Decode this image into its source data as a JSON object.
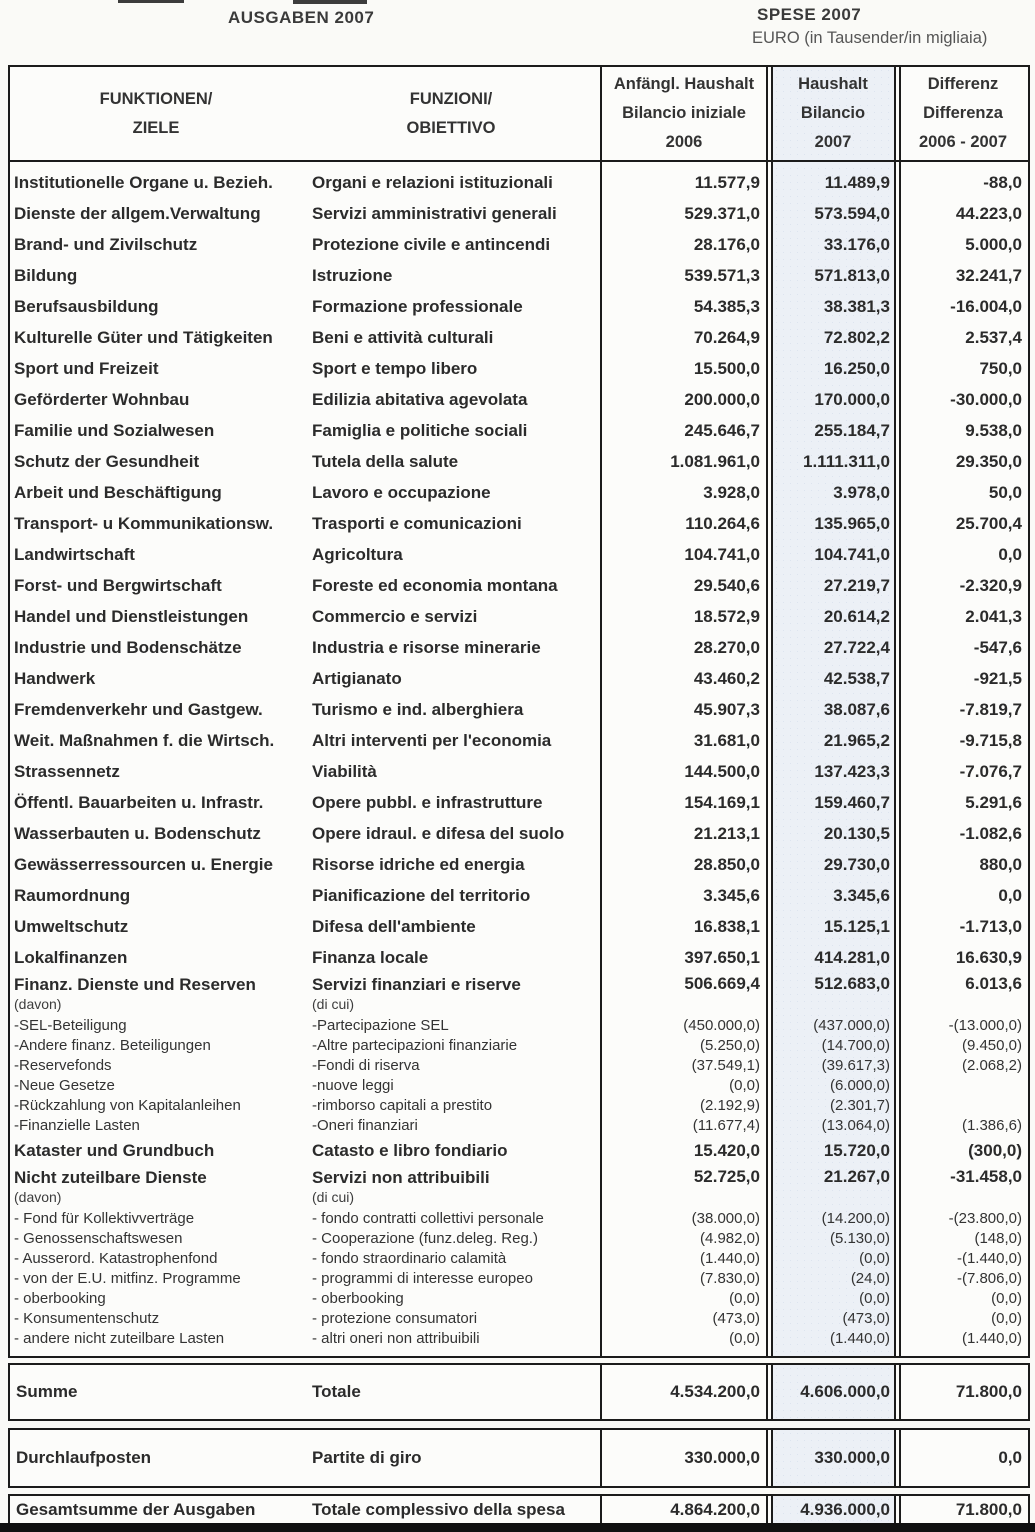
{
  "page": {
    "title_left": "AUSGABEN 2007",
    "title_right": "SPESE 2007",
    "subtitle_right": "EURO (in Tausender/in migliaia)"
  },
  "colors": {
    "border": "#1b1b1b",
    "column_2007_background": "#ecf0f6",
    "bottom_strip": "#101010"
  },
  "table": {
    "headers": {
      "col1": [
        "FUNKTIONEN/",
        "ZIELE"
      ],
      "col2": [
        "FUNZIONI/",
        "OBIETTIVO"
      ],
      "col3": [
        "Anfängl. Haushalt",
        "Bilancio iniziale",
        "2006"
      ],
      "col4": [
        "Haushalt",
        "Bilancio",
        "2007"
      ],
      "col5": [
        "Differenz",
        "Differenza",
        "2006 - 2007"
      ]
    },
    "rows": [
      {
        "type": "main",
        "de": "Institutionelle Organe u. Bezieh.",
        "it": "Organi e relazioni istituzionali",
        "v2006": "11.577,9",
        "v2007": "11.489,9",
        "diff": "-88,0"
      },
      {
        "type": "main",
        "de": "Dienste der allgem.Verwaltung",
        "it": "Servizi amministrativi generali",
        "v2006": "529.371,0",
        "v2007": "573.594,0",
        "diff": "44.223,0"
      },
      {
        "type": "main",
        "de": "Brand- und Zivilschutz",
        "it": "Protezione civile e antincendi",
        "v2006": "28.176,0",
        "v2007": "33.176,0",
        "diff": "5.000,0"
      },
      {
        "type": "main",
        "de": "Bildung",
        "it": "Istruzione",
        "v2006": "539.571,3",
        "v2007": "571.813,0",
        "diff": "32.241,7"
      },
      {
        "type": "main",
        "de": "Berufsausbildung",
        "it": "Formazione professionale",
        "v2006": "54.385,3",
        "v2007": "38.381,3",
        "diff": "-16.004,0"
      },
      {
        "type": "main",
        "de": "Kulturelle Güter und Tätigkeiten",
        "it": "Beni e attività culturali",
        "v2006": "70.264,9",
        "v2007": "72.802,2",
        "diff": "2.537,4"
      },
      {
        "type": "main",
        "de": "Sport und Freizeit",
        "it": "Sport e tempo libero",
        "v2006": "15.500,0",
        "v2007": "16.250,0",
        "diff": "750,0"
      },
      {
        "type": "main",
        "de": "Geförderter Wohnbau",
        "it": "Edilizia abitativa agevolata",
        "v2006": "200.000,0",
        "v2007": "170.000,0",
        "diff": "-30.000,0"
      },
      {
        "type": "main",
        "de": "Familie und Sozialwesen",
        "it": "Famiglia e politiche sociali",
        "v2006": "245.646,7",
        "v2007": "255.184,7",
        "diff": "9.538,0"
      },
      {
        "type": "main",
        "de": "Schutz der Gesundheit",
        "it": "Tutela della salute",
        "v2006": "1.081.961,0",
        "v2007": "1.111.311,0",
        "diff": "29.350,0"
      },
      {
        "type": "main",
        "de": "Arbeit und Beschäftigung",
        "it": "Lavoro e occupazione",
        "v2006": "3.928,0",
        "v2007": "3.978,0",
        "diff": "50,0"
      },
      {
        "type": "main",
        "de": "Transport- u Kommunikationsw.",
        "it": "Trasporti e comunicazioni",
        "v2006": "110.264,6",
        "v2007": "135.965,0",
        "diff": "25.700,4"
      },
      {
        "type": "main",
        "de": "Landwirtschaft",
        "it": "Agricoltura",
        "v2006": "104.741,0",
        "v2007": "104.741,0",
        "diff": "0,0"
      },
      {
        "type": "main",
        "de": "Forst- und Bergwirtschaft",
        "it": "Foreste ed economia montana",
        "v2006": "29.540,6",
        "v2007": "27.219,7",
        "diff": "-2.320,9"
      },
      {
        "type": "main",
        "de": "Handel und Dienstleistungen",
        "it": "Commercio e servizi",
        "v2006": "18.572,9",
        "v2007": "20.614,2",
        "diff": "2.041,3"
      },
      {
        "type": "main",
        "de": "Industrie und Bodenschätze",
        "it": "Industria e risorse minerarie",
        "v2006": "28.270,0",
        "v2007": "27.722,4",
        "diff": "-547,6"
      },
      {
        "type": "main",
        "de": "Handwerk",
        "it": "Artigianato",
        "v2006": "43.460,2",
        "v2007": "42.538,7",
        "diff": "-921,5"
      },
      {
        "type": "main",
        "de": "Fremdenverkehr und Gastgew.",
        "it": "Turismo e ind. alberghiera",
        "v2006": "45.907,3",
        "v2007": "38.087,6",
        "diff": "-7.819,7"
      },
      {
        "type": "main",
        "de": "Weit. Maßnahmen f. die Wirtsch.",
        "it": "Altri interventi per l'economia",
        "v2006": "31.681,0",
        "v2007": "21.965,2",
        "diff": "-9.715,8"
      },
      {
        "type": "main",
        "de": "Strassennetz",
        "it": "Viabilità",
        "v2006": "144.500,0",
        "v2007": "137.423,3",
        "diff": "-7.076,7"
      },
      {
        "type": "main",
        "de": "Öffentl. Bauarbeiten u. Infrastr.",
        "it": "Opere pubbl. e infrastrutture",
        "v2006": "154.169,1",
        "v2007": "159.460,7",
        "diff": "5.291,6"
      },
      {
        "type": "main",
        "de": "Wasserbauten u. Bodenschutz",
        "it": "Opere idraul. e difesa del suolo",
        "v2006": "21.213,1",
        "v2007": "20.130,5",
        "diff": "-1.082,6"
      },
      {
        "type": "main",
        "de": "Gewässerressourcen u. Energie",
        "it": "Risorse idriche ed energia",
        "v2006": "28.850,0",
        "v2007": "29.730,0",
        "diff": "880,0"
      },
      {
        "type": "main",
        "de": "Raumordnung",
        "it": "Pianificazione del territorio",
        "v2006": "3.345,6",
        "v2007": "3.345,6",
        "diff": "0,0"
      },
      {
        "type": "main",
        "de": "Umweltschutz",
        "it": "Difesa dell'ambiente",
        "v2006": "16.838,1",
        "v2007": "15.125,1",
        "diff": "-1.713,0"
      },
      {
        "type": "main",
        "de": "Lokalfinanzen",
        "it": "Finanza locale",
        "v2006": "397.650,1",
        "v2007": "414.281,0",
        "diff": "16.630,9"
      },
      {
        "type": "mainsub",
        "de": "Finanz. Dienste und Reserven",
        "de2": "(davon)",
        "it": "Servizi finanziari e riserve",
        "it2": "(di cui)",
        "v2006": "506.669,4",
        "v2007": "512.683,0",
        "diff": "6.013,6"
      },
      {
        "type": "sub",
        "de": "-SEL-Beteiligung",
        "it": "-Partecipazione SEL",
        "v2006": "(450.000,0)",
        "v2007": "(437.000,0)",
        "diff": "-(13.000,0)"
      },
      {
        "type": "sub",
        "de": "-Andere finanz. Beteiligungen",
        "it": "-Altre partecipazioni finanziarie",
        "v2006": "(5.250,0)",
        "v2007": "(14.700,0)",
        "diff": "(9.450,0)"
      },
      {
        "type": "sub",
        "de": "-Reservefonds",
        "it": "-Fondi di riserva",
        "v2006": "(37.549,1)",
        "v2007": "(39.617,3)",
        "diff": "(2.068,2)"
      },
      {
        "type": "sub",
        "de": "-Neue Gesetze",
        "it": "-nuove leggi",
        "v2006": "(0,0)",
        "v2007": "(6.000,0)",
        "diff": ""
      },
      {
        "type": "sub",
        "de": "-Rückzahlung von Kapitalanleihen",
        "it": "-rimborso capitali a prestito",
        "v2006": "(2.192,9)",
        "v2007": "(2.301,7)",
        "diff": ""
      },
      {
        "type": "sub",
        "de": "-Finanzielle Lasten",
        "it": "-Oneri finanziari",
        "v2006": "(11.677,4)",
        "v2007": "(13.064,0)",
        "diff": "(1.386,6)"
      },
      {
        "type": "main",
        "de": "Kataster und Grundbuch",
        "it": "Catasto e libro fondiario",
        "v2006": "15.420,0",
        "v2007": "15.720,0",
        "diff": "(300,0)"
      },
      {
        "type": "mainsub",
        "de": "Nicht zuteilbare Dienste",
        "de2": "(davon)",
        "it": "Servizi non attribuibili",
        "it2": "(di cui)",
        "v2006": "52.725,0",
        "v2007": "21.267,0",
        "diff": "-31.458,0"
      },
      {
        "type": "sub",
        "de": "- Fond für Kollektivverträge",
        "it": "- fondo contratti collettivi personale",
        "v2006": "(38.000,0)",
        "v2007": "(14.200,0)",
        "diff": "-(23.800,0)"
      },
      {
        "type": "sub",
        "de": "- Genossenschaftswesen",
        "it": "- Cooperazione (funz.deleg. Reg.)",
        "v2006": "(4.982,0)",
        "v2007": "(5.130,0)",
        "diff": "(148,0)"
      },
      {
        "type": "sub",
        "de": "- Ausserord. Katastrophenfond",
        "it": "- fondo straordinario calamità",
        "v2006": "(1.440,0)",
        "v2007": "(0,0)",
        "diff": "-(1.440,0)"
      },
      {
        "type": "sub",
        "de": "- von der E.U. mitfinz. Programme",
        "it": "- programmi di interesse europeo",
        "v2006": "(7.830,0)",
        "v2007": "(24,0)",
        "diff": "-(7.806,0)"
      },
      {
        "type": "sub",
        "de": "- oberbooking",
        "it": "- oberbooking",
        "v2006": "(0,0)",
        "v2007": "(0,0)",
        "diff": "(0,0)"
      },
      {
        "type": "sub",
        "de": "- Konsumentenschutz",
        "it": "- protezione consumatori",
        "v2006": "(473,0)",
        "v2007": "(473,0)",
        "diff": "(0,0)"
      },
      {
        "type": "sub",
        "de": "- andere nicht zuteilbare Lasten",
        "it": "- altri oneri non attribuibili",
        "v2006": "(0,0)",
        "v2007": "(1.440,0)",
        "diff": "(1.440,0)"
      }
    ],
    "totals": [
      {
        "de": "Summe",
        "it": "Totale",
        "v2006": "4.534.200,0",
        "v2007": "4.606.000,0",
        "diff": "71.800,0"
      },
      {
        "de": "Durchlaufposten",
        "it": "Partite di giro",
        "v2006": "330.000,0",
        "v2007": "330.000,0",
        "diff": "0,0"
      },
      {
        "de": "Gesamtsumme der Ausgaben",
        "it": "Totale complessivo della spesa",
        "v2006": "4.864.200,0",
        "v2007": "4.936.000,0",
        "diff": "71.800,0"
      }
    ]
  }
}
